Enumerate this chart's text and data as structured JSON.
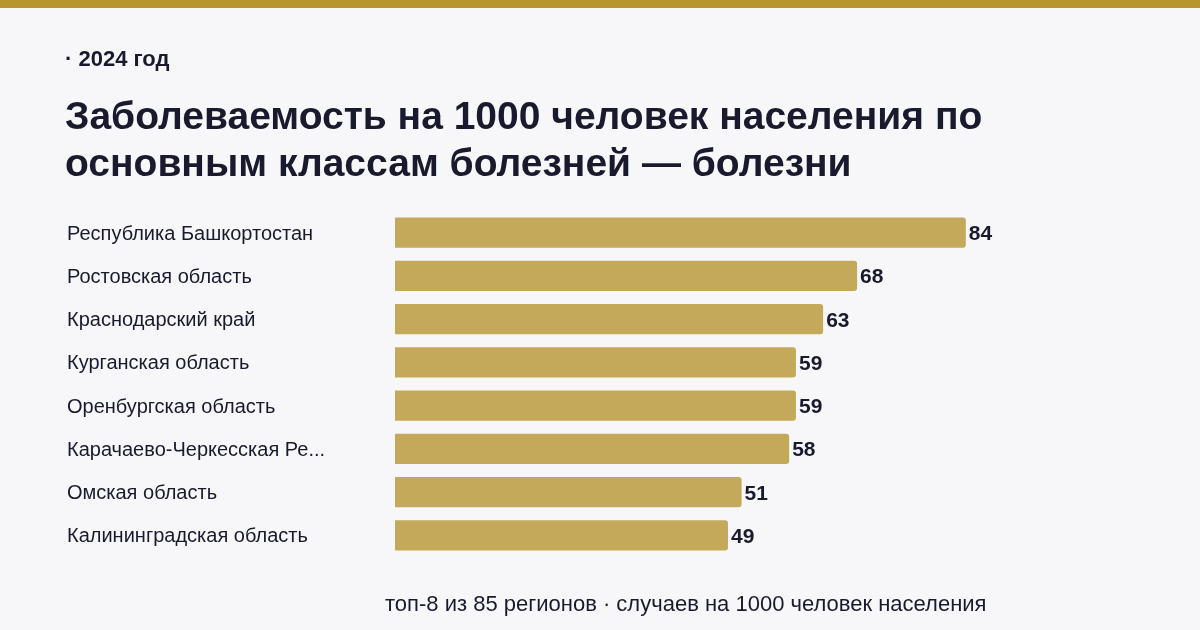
{
  "chart_data": {
    "type": "bar",
    "orientation": "horizontal",
    "subtitle": "· 2024 год",
    "title": "Заболеваемость на 1000 человек населения по основным классам болезней — болезни",
    "categories": [
      "Республика Башкортостан",
      "Ростовская область",
      "Краснодарский край",
      "Курганская область",
      "Оренбургская область",
      "Карачаево-Черкесская Ре...",
      "Омская область",
      "Калининградская область"
    ],
    "values": [
      84,
      68,
      63,
      59,
      59,
      58,
      51,
      49
    ],
    "color": "#c5a95b",
    "data_labels": true,
    "annotations": [
      "топ-8 из 85 регионов · случаев на 1000 человек населения"
    ]
  }
}
